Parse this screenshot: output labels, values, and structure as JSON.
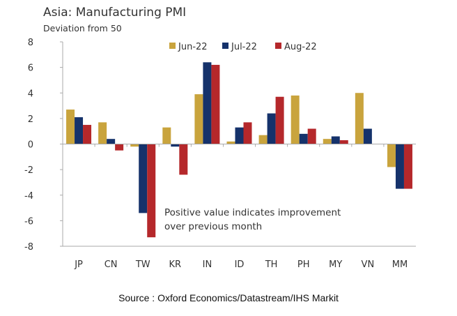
{
  "chart_data": {
    "type": "bar",
    "title": "Asia: Manufacturing PMI",
    "subtitle": "Deviation from 50",
    "categories": [
      "JP",
      "CN",
      "TW",
      "KR",
      "IN",
      "ID",
      "TH",
      "PH",
      "MY",
      "VN",
      "MM"
    ],
    "series": [
      {
        "name": "Jun-22",
        "color": "#C9A43D",
        "values": [
          2.7,
          1.7,
          -0.2,
          1.3,
          3.9,
          0.2,
          0.7,
          3.8,
          0.4,
          4.0,
          -1.8
        ]
      },
      {
        "name": "Jul-22",
        "color": "#15326B",
        "values": [
          2.1,
          0.4,
          -5.4,
          -0.2,
          6.4,
          1.3,
          2.4,
          0.8,
          0.6,
          1.2,
          -3.5
        ]
      },
      {
        "name": "Aug-22",
        "color": "#B5282B",
        "values": [
          1.5,
          -0.5,
          -7.3,
          -2.4,
          6.2,
          1.7,
          3.7,
          1.2,
          0.3,
          0.0,
          -3.5
        ]
      }
    ],
    "ylim": [
      -8,
      8
    ],
    "yticks": [
      8,
      6,
      4,
      2,
      0,
      -2,
      -4,
      -6,
      -8
    ],
    "grid": false,
    "legend": "top",
    "annotation": "Positive value indicates improvement\nover previous month",
    "source": "Source : Oxford Economics/Datastream/IHS Markit"
  }
}
